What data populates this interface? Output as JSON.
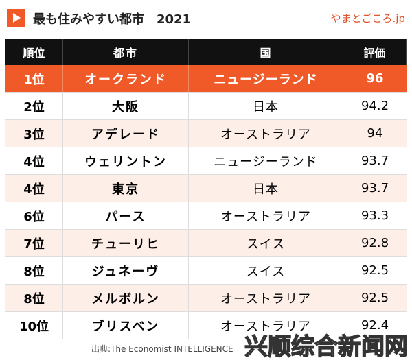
{
  "header": {
    "title": "最も住みやすい都市　2021",
    "logo": "やまとごころ.jp"
  },
  "table": {
    "columns": [
      "順位",
      "都市",
      "国",
      "評価"
    ],
    "rows": [
      [
        "1位",
        "オークランド",
        "ニュージーランド",
        "96"
      ],
      [
        "2位",
        "大阪",
        "日本",
        "94.2"
      ],
      [
        "3位",
        "アデレード",
        "オーストラリア",
        "94"
      ],
      [
        "4位",
        "ウェリントン",
        "ニュージーランド",
        "93.7"
      ],
      [
        "4位",
        "東京",
        "日本",
        "93.7"
      ],
      [
        "6位",
        "パース",
        "オーストラリア",
        "93.3"
      ],
      [
        "7位",
        "チューリヒ",
        "スイス",
        "92.8"
      ],
      [
        "8位",
        "ジュネーヴ",
        "スイス",
        "92.5"
      ],
      [
        "8位",
        "メルボルン",
        "オーストラリア",
        "92.5"
      ],
      [
        "10位",
        "ブリスベン",
        "オーストラリア",
        "92.4"
      ]
    ]
  },
  "footer": {
    "source": "出典:The Economist INTELLIGENCE",
    "watermark": "兴顺综合新闻网"
  }
}
